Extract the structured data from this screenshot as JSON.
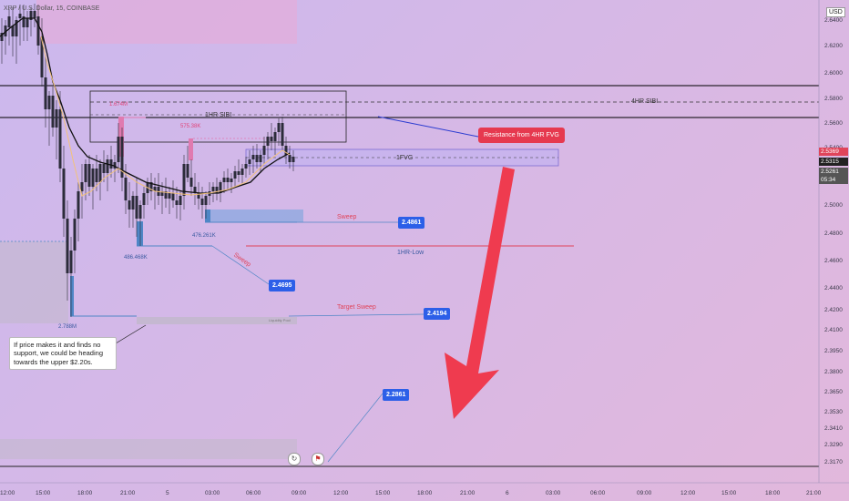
{
  "header": {
    "title": "XRP / U.S. Dollar, 15, COINBASE",
    "currency": "USD"
  },
  "price_axis": {
    "ticks": [
      "2.6400",
      "2.6200",
      "2.6000",
      "2.5800",
      "2.5600",
      "2.5400",
      "2.5200",
      "2.5000",
      "2.4800",
      "2.4600",
      "2.4400",
      "2.4200",
      "2.4100",
      "2.3950",
      "2.3800",
      "2.3650",
      "2.3530",
      "2.3410",
      "2.3290",
      "2.3170"
    ],
    "price_red": "2.5369",
    "price_dark": "2.5315",
    "price_gray": "2.5261",
    "countdown": "05:34"
  },
  "time_axis": {
    "ticks": [
      "12:00",
      "15:00",
      "18:00",
      "21:00",
      "5",
      "03:00",
      "06:00",
      "09:00",
      "12:00",
      "15:00",
      "18:00",
      "21:00",
      "6",
      "03:00",
      "06:00",
      "09:00",
      "12:00",
      "15:00",
      "18:00",
      "21:00"
    ]
  },
  "annotations": {
    "hr4_sibi": "4HR SIBI",
    "hr1_sibi": "1HR SIBI",
    "fvg_1": "1FVG",
    "vol_1": "1.674M",
    "vol_2": "575.38K",
    "vol_3": "476.261K",
    "vol_4": "486.468K",
    "vol_5": "2.788M",
    "sweep_1": "Sweep",
    "sweep_2": "Sweep",
    "target_sweep": "Target Sweep",
    "hr1_low": "1HR-Low",
    "liq_pool": "Liquidity Pool",
    "resistance": "Resistance from 4HR FVG",
    "note": "If price makes it and finds no support, we could be heading towards the upper $2.20s."
  },
  "tags": {
    "t1": "2.4861",
    "t2": "2.4695",
    "t3": "2.4194",
    "t4": "2.2861"
  },
  "colors": {
    "bull": "#26a69a",
    "bear": "#ef5350",
    "arrow": "#ef3b4f",
    "tag": "#2c5fe8"
  }
}
